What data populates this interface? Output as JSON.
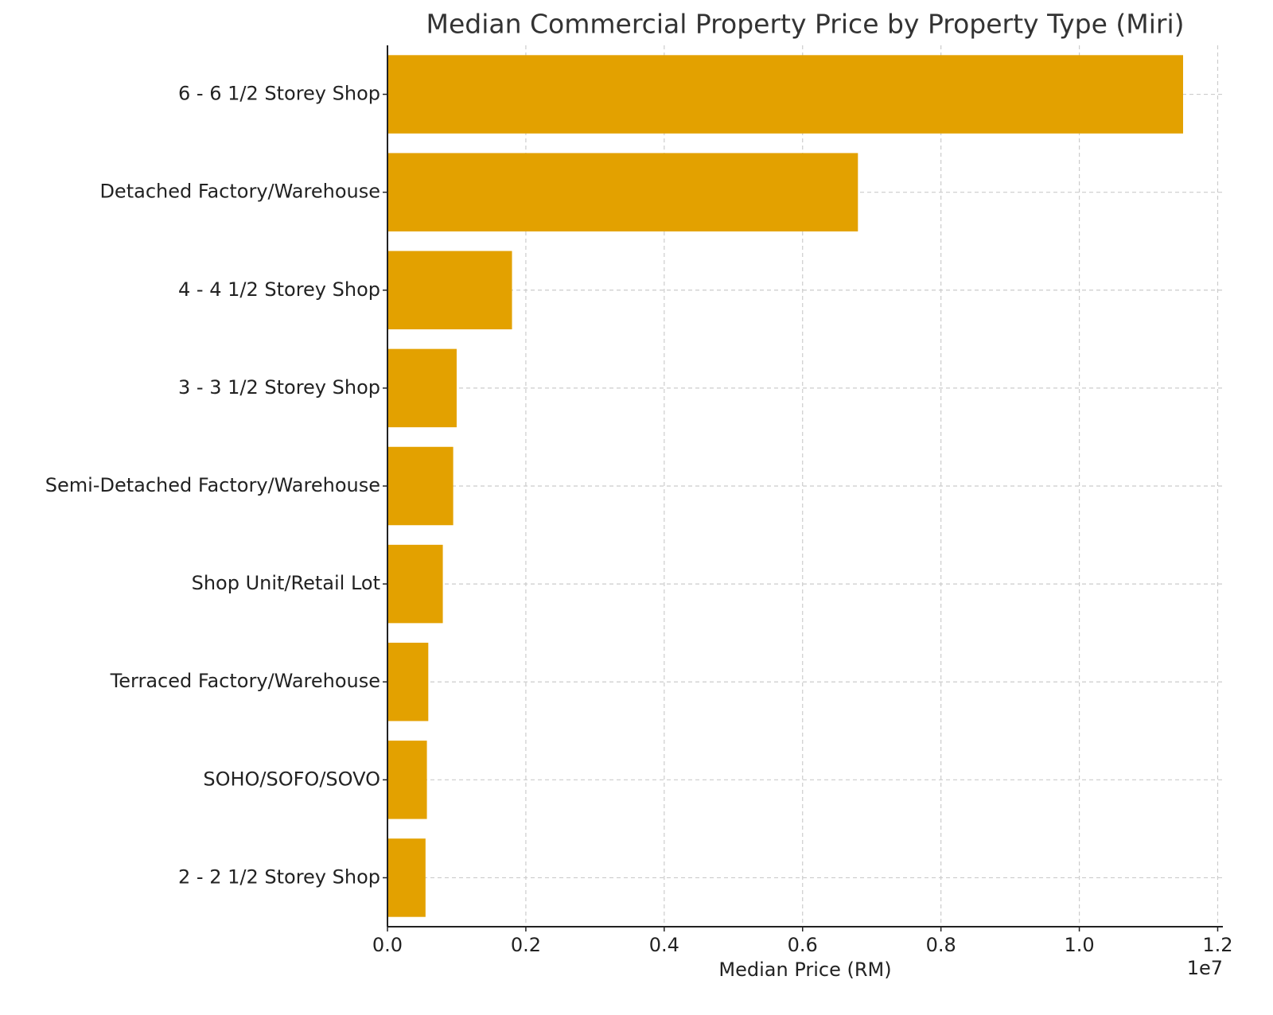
{
  "chart_data": {
    "type": "barh",
    "title": "Median Commercial Property Price by Property Type (Miri)",
    "x_label": "Median Price (RM)",
    "x_offset_label": "1e7",
    "categories": [
      "6 - 6 1/2 Storey Shop",
      "Detached Factory/Warehouse",
      "4 - 4 1/2 Storey Shop",
      "3 - 3 1/2 Storey Shop",
      "Semi-Detached Factory/Warehouse",
      "Shop Unit/Retail Lot",
      "Terraced Factory/Warehouse",
      "SOHO/SOFO/SOVO",
      "2 - 2 1/2 Storey Shop"
    ],
    "values": [
      11500000,
      6800000,
      1800000,
      1000000,
      950000,
      800000,
      590000,
      570000,
      550000
    ],
    "color": "#e3a100",
    "xlim": [
      0,
      12075000
    ],
    "xticks": [
      {
        "value": 0,
        "label": "0.0"
      },
      {
        "value": 2000000,
        "label": "0.2"
      },
      {
        "value": 4000000,
        "label": "0.4"
      },
      {
        "value": 6000000,
        "label": "0.6"
      },
      {
        "value": 8000000,
        "label": "0.8"
      },
      {
        "value": 10000000,
        "label": "1.0"
      },
      {
        "value": 12000000,
        "label": "1.2"
      }
    ],
    "grid": true
  }
}
